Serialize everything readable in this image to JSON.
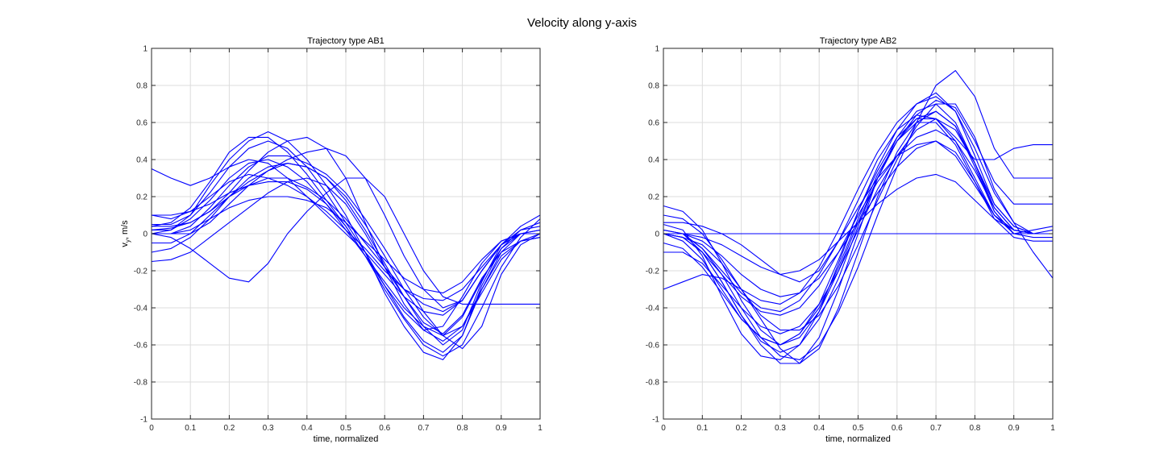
{
  "figure": {
    "title": "Velocity along y-axis"
  },
  "colors": {
    "series": "#0000ff",
    "grid": "#dcdcdc",
    "axis": "#262626"
  },
  "chart_data": [
    {
      "type": "line",
      "title": "Trajectory type AB1",
      "xlabel": "time, normalized",
      "ylabel_main": "v",
      "ylabel_sub": "y",
      "ylabel_unit": ", m/s",
      "xlim": [
        0,
        1
      ],
      "ylim": [
        -1,
        1
      ],
      "xticks": [
        "0",
        "0.1",
        "0.2",
        "0.3",
        "0.4",
        "0.5",
        "0.6",
        "0.7",
        "0.8",
        "0.9",
        "1"
      ],
      "yticks": [
        "-1",
        "-0.8",
        "-0.6",
        "-0.4",
        "-0.2",
        "0",
        "0.2",
        "0.4",
        "0.6",
        "0.8",
        "1"
      ],
      "grid": true,
      "x": [
        0,
        0.05,
        0.1,
        0.15,
        0.2,
        0.25,
        0.3,
        0.35,
        0.4,
        0.45,
        0.5,
        0.55,
        0.6,
        0.65,
        0.7,
        0.75,
        0.8,
        0.85,
        0.9,
        0.95,
        1
      ],
      "series": [
        {
          "values": [
            0.02,
            0.03,
            0.06,
            0.12,
            0.2,
            0.26,
            0.3,
            0.3,
            0.25,
            0.18,
            0.08,
            -0.05,
            -0.18,
            -0.3,
            -0.38,
            -0.42,
            -0.36,
            -0.2,
            -0.06,
            0.0,
            0.02
          ]
        },
        {
          "values": [
            0.0,
            0.02,
            0.08,
            0.18,
            0.3,
            0.38,
            0.4,
            0.36,
            0.28,
            0.16,
            0.02,
            -0.12,
            -0.26,
            -0.4,
            -0.5,
            -0.55,
            -0.45,
            -0.25,
            -0.08,
            0.02,
            0.04
          ]
        },
        {
          "values": [
            0.05,
            0.05,
            0.1,
            0.22,
            0.36,
            0.46,
            0.5,
            0.46,
            0.36,
            0.22,
            0.06,
            -0.1,
            -0.28,
            -0.45,
            -0.58,
            -0.64,
            -0.55,
            -0.3,
            -0.1,
            0.0,
            0.0
          ]
        },
        {
          "values": [
            -0.05,
            -0.05,
            0.0,
            0.1,
            0.2,
            0.28,
            0.34,
            0.38,
            0.36,
            0.3,
            0.2,
            0.05,
            -0.12,
            -0.3,
            -0.45,
            -0.55,
            -0.5,
            -0.3,
            -0.12,
            -0.04,
            -0.02
          ]
        },
        {
          "values": [
            0.1,
            0.08,
            0.12,
            0.2,
            0.28,
            0.32,
            0.3,
            0.26,
            0.2,
            0.12,
            0.02,
            -0.08,
            -0.2,
            -0.3,
            -0.35,
            -0.36,
            -0.3,
            -0.18,
            -0.06,
            0.0,
            0.0
          ]
        },
        {
          "values": [
            0.0,
            0.0,
            0.04,
            0.14,
            0.26,
            0.36,
            0.42,
            0.42,
            0.38,
            0.32,
            0.22,
            0.08,
            -0.08,
            -0.25,
            -0.42,
            -0.55,
            -0.62,
            -0.5,
            -0.22,
            -0.06,
            0.0
          ]
        },
        {
          "values": [
            0.02,
            0.02,
            0.1,
            0.26,
            0.4,
            0.5,
            0.55,
            0.5,
            0.4,
            0.26,
            0.1,
            -0.1,
            -0.32,
            -0.5,
            -0.64,
            -0.68,
            -0.55,
            -0.28,
            -0.08,
            0.0,
            0.02
          ]
        },
        {
          "values": [
            0.0,
            0.0,
            0.02,
            0.08,
            0.14,
            0.18,
            0.2,
            0.2,
            0.18,
            0.14,
            0.06,
            -0.04,
            -0.14,
            -0.24,
            -0.3,
            -0.32,
            -0.26,
            -0.14,
            -0.04,
            0.0,
            0.0
          ]
        },
        {
          "values": [
            0.35,
            0.3,
            0.26,
            0.3,
            0.36,
            0.4,
            0.38,
            0.3,
            0.2,
            0.1,
            0.0,
            -0.1,
            -0.22,
            -0.34,
            -0.42,
            -0.44,
            -0.36,
            -0.2,
            -0.06,
            0.02,
            0.06
          ]
        },
        {
          "values": [
            -0.15,
            -0.14,
            -0.1,
            -0.02,
            0.06,
            0.14,
            0.22,
            0.28,
            0.3,
            0.26,
            0.16,
            0.0,
            -0.18,
            -0.34,
            -0.48,
            -0.54,
            -0.44,
            -0.24,
            -0.1,
            -0.04,
            -0.02
          ]
        },
        {
          "values": [
            0.0,
            -0.02,
            -0.08,
            -0.16,
            -0.24,
            -0.26,
            -0.16,
            0.0,
            0.12,
            0.22,
            0.3,
            0.3,
            0.2,
            0.0,
            -0.2,
            -0.34,
            -0.38,
            -0.38,
            -0.38,
            -0.38,
            -0.38
          ]
        },
        {
          "values": [
            0.04,
            0.06,
            0.14,
            0.28,
            0.44,
            0.52,
            0.52,
            0.44,
            0.32,
            0.18,
            0.04,
            -0.12,
            -0.28,
            -0.42,
            -0.52,
            -0.58,
            -0.5,
            -0.32,
            -0.14,
            -0.04,
            0.0
          ]
        },
        {
          "values": [
            0.1,
            0.1,
            0.12,
            0.16,
            0.22,
            0.26,
            0.28,
            0.28,
            0.24,
            0.16,
            0.04,
            -0.12,
            -0.3,
            -0.46,
            -0.6,
            -0.66,
            -0.6,
            -0.4,
            -0.18,
            -0.02,
            0.08
          ]
        },
        {
          "values": [
            0.0,
            0.0,
            0.0,
            0.06,
            0.16,
            0.26,
            0.34,
            0.4,
            0.44,
            0.46,
            0.42,
            0.3,
            0.1,
            -0.12,
            -0.3,
            -0.4,
            -0.36,
            -0.2,
            -0.06,
            0.0,
            0.0
          ]
        },
        {
          "values": [
            -0.1,
            -0.08,
            -0.02,
            0.08,
            0.2,
            0.3,
            0.36,
            0.38,
            0.36,
            0.3,
            0.18,
            0.02,
            -0.16,
            -0.34,
            -0.5,
            -0.6,
            -0.52,
            -0.26,
            -0.06,
            0.04,
            0.1
          ]
        },
        {
          "values": [
            0.04,
            0.04,
            0.06,
            0.12,
            0.22,
            0.34,
            0.44,
            0.5,
            0.52,
            0.46,
            0.3,
            0.06,
            -0.18,
            -0.38,
            -0.52,
            -0.5,
            -0.34,
            -0.16,
            -0.04,
            0.0,
            0.0
          ]
        }
      ]
    },
    {
      "type": "line",
      "title": "Trajectory type AB2",
      "xlabel": "time, normalized",
      "xlim": [
        0,
        1
      ],
      "ylim": [
        -1,
        1
      ],
      "xticks": [
        "0",
        "0.1",
        "0.2",
        "0.3",
        "0.4",
        "0.5",
        "0.6",
        "0.7",
        "0.8",
        "0.9",
        "1"
      ],
      "yticks": [
        "-1",
        "-0.8",
        "-0.6",
        "-0.4",
        "-0.2",
        "0",
        "0.2",
        "0.4",
        "0.6",
        "0.8",
        "1"
      ],
      "grid": true,
      "x": [
        0,
        0.05,
        0.1,
        0.15,
        0.2,
        0.25,
        0.3,
        0.35,
        0.4,
        0.45,
        0.5,
        0.55,
        0.6,
        0.65,
        0.7,
        0.75,
        0.8,
        0.85,
        0.9,
        0.95,
        1
      ],
      "series": [
        {
          "values": [
            0.0,
            -0.02,
            -0.1,
            -0.22,
            -0.34,
            -0.42,
            -0.44,
            -0.4,
            -0.28,
            -0.1,
            0.1,
            0.28,
            0.42,
            0.52,
            0.56,
            0.5,
            0.34,
            0.14,
            0.02,
            0.0,
            0.0
          ]
        },
        {
          "values": [
            0.0,
            -0.04,
            -0.14,
            -0.3,
            -0.46,
            -0.56,
            -0.6,
            -0.54,
            -0.38,
            -0.14,
            0.12,
            0.34,
            0.52,
            0.62,
            0.66,
            0.58,
            0.38,
            0.14,
            0.02,
            0.0,
            0.02
          ]
        },
        {
          "values": [
            0.02,
            0.0,
            -0.08,
            -0.2,
            -0.32,
            -0.4,
            -0.42,
            -0.36,
            -0.22,
            -0.04,
            0.14,
            0.3,
            0.42,
            0.48,
            0.5,
            0.42,
            0.26,
            0.1,
            0.02,
            0.0,
            0.0
          ]
        },
        {
          "values": [
            0.05,
            0.02,
            -0.12,
            -0.34,
            -0.54,
            -0.66,
            -0.68,
            -0.6,
            -0.42,
            -0.16,
            0.12,
            0.36,
            0.56,
            0.7,
            0.76,
            0.66,
            0.42,
            0.16,
            0.04,
            0.0,
            0.0
          ]
        },
        {
          "values": [
            0.0,
            0.0,
            -0.04,
            -0.12,
            -0.22,
            -0.3,
            -0.34,
            -0.32,
            -0.24,
            -0.1,
            0.06,
            0.22,
            0.36,
            0.46,
            0.5,
            0.44,
            0.28,
            0.1,
            0.0,
            -0.02,
            -0.02
          ]
        },
        {
          "values": [
            -0.1,
            -0.1,
            -0.16,
            -0.28,
            -0.4,
            -0.5,
            -0.54,
            -0.5,
            -0.38,
            -0.2,
            0.02,
            0.24,
            0.42,
            0.56,
            0.62,
            0.56,
            0.38,
            0.16,
            0.04,
            0.0,
            0.0
          ]
        },
        {
          "values": [
            0.1,
            0.08,
            0.0,
            -0.14,
            -0.3,
            -0.44,
            -0.52,
            -0.52,
            -0.44,
            -0.28,
            -0.06,
            0.18,
            0.4,
            0.58,
            0.7,
            0.7,
            0.52,
            0.24,
            0.06,
            0.0,
            0.0
          ]
        },
        {
          "values": [
            0.0,
            -0.02,
            -0.06,
            -0.16,
            -0.3,
            -0.46,
            -0.62,
            -0.7,
            -0.62,
            -0.4,
            -0.1,
            0.2,
            0.44,
            0.6,
            0.66,
            0.58,
            0.36,
            0.12,
            0.0,
            0.0,
            0.0
          ]
        },
        {
          "values": [
            0.0,
            0.0,
            -0.02,
            -0.06,
            -0.12,
            -0.18,
            -0.22,
            -0.2,
            -0.14,
            -0.04,
            0.06,
            0.16,
            0.24,
            0.3,
            0.32,
            0.28,
            0.18,
            0.08,
            0.02,
            0.0,
            0.0
          ]
        },
        {
          "values": [
            0.15,
            0.12,
            0.02,
            -0.16,
            -0.36,
            -0.52,
            -0.6,
            -0.56,
            -0.42,
            -0.2,
            0.06,
            0.3,
            0.5,
            0.64,
            0.72,
            0.68,
            0.5,
            0.28,
            0.16,
            0.16,
            0.16
          ]
        },
        {
          "values": [
            -0.3,
            -0.26,
            -0.22,
            -0.24,
            -0.3,
            -0.36,
            -0.38,
            -0.32,
            -0.18,
            0.02,
            0.24,
            0.44,
            0.6,
            0.7,
            0.74,
            0.66,
            0.46,
            0.22,
            0.06,
            -0.1,
            -0.24
          ]
        },
        {
          "values": [
            0.0,
            0.0,
            -0.08,
            -0.22,
            -0.4,
            -0.56,
            -0.66,
            -0.68,
            -0.6,
            -0.42,
            -0.18,
            0.1,
            0.36,
            0.6,
            0.8,
            0.88,
            0.74,
            0.46,
            0.3,
            0.3,
            0.3
          ]
        },
        {
          "values": [
            0.02,
            0.0,
            -0.1,
            -0.26,
            -0.44,
            -0.58,
            -0.64,
            -0.6,
            -0.46,
            -0.24,
            0.04,
            0.3,
            0.5,
            0.62,
            0.62,
            0.5,
            0.3,
            0.1,
            0.0,
            0.0,
            0.0
          ]
        },
        {
          "values": [
            0.06,
            0.06,
            0.04,
            0.0,
            -0.06,
            -0.14,
            -0.22,
            -0.26,
            -0.2,
            -0.04,
            0.18,
            0.4,
            0.56,
            0.64,
            0.62,
            0.52,
            0.4,
            0.4,
            0.46,
            0.48,
            0.48
          ]
        },
        {
          "values": [
            -0.05,
            -0.08,
            -0.18,
            -0.32,
            -0.46,
            -0.56,
            -0.6,
            -0.54,
            -0.4,
            -0.18,
            0.08,
            0.32,
            0.5,
            0.6,
            0.6,
            0.48,
            0.28,
            0.08,
            -0.02,
            -0.04,
            -0.04
          ]
        },
        {
          "values": [
            0.0,
            -0.02,
            -0.1,
            -0.26,
            -0.44,
            -0.6,
            -0.7,
            -0.7,
            -0.56,
            -0.3,
            0.0,
            0.3,
            0.52,
            0.66,
            0.7,
            0.6,
            0.38,
            0.12,
            0.0,
            0.02,
            0.04
          ]
        },
        {
          "values": [
            0.0,
            0.0,
            0.0,
            0.0,
            0.0,
            0.0,
            0.0,
            0.0,
            0.0,
            0.0,
            0.0,
            0.0,
            0.0,
            0.0,
            0.0,
            0.0,
            0.0,
            0.0,
            0.0,
            0.0,
            0.0
          ]
        }
      ]
    }
  ]
}
